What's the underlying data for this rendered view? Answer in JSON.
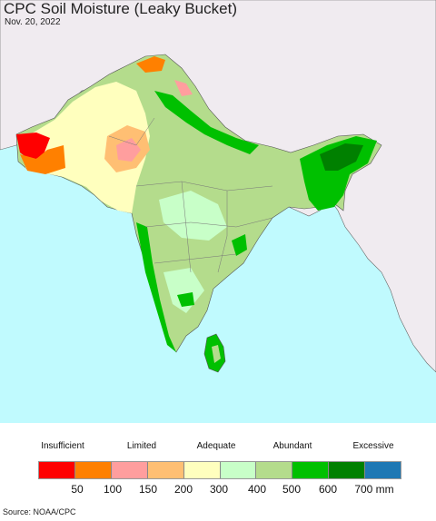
{
  "header": {
    "title": "CPC Soil Moisture (Leaky Bucket)",
    "date": "Nov. 20, 2022"
  },
  "legend": {
    "category_labels": [
      "Insufficient",
      "Limited",
      "Adequate",
      "Abundant",
      "Excessive"
    ],
    "colors": [
      "#ff0000",
      "#ff8000",
      "#ff9e9e",
      "#ffbf73",
      "#ffffbe",
      "#c8ffc8",
      "#b4dc8c",
      "#00c000",
      "#008000",
      "#1e78b4"
    ],
    "ticks": [
      "50",
      "100",
      "150",
      "200",
      "300",
      "400",
      "500",
      "600",
      "700 mm"
    ]
  },
  "map": {
    "ocean_color": "#c0fafe",
    "outside_land_color": "#f0ebf0",
    "border_color": "#555555"
  },
  "footer": {
    "source": "Source: NOAA/CPC"
  }
}
